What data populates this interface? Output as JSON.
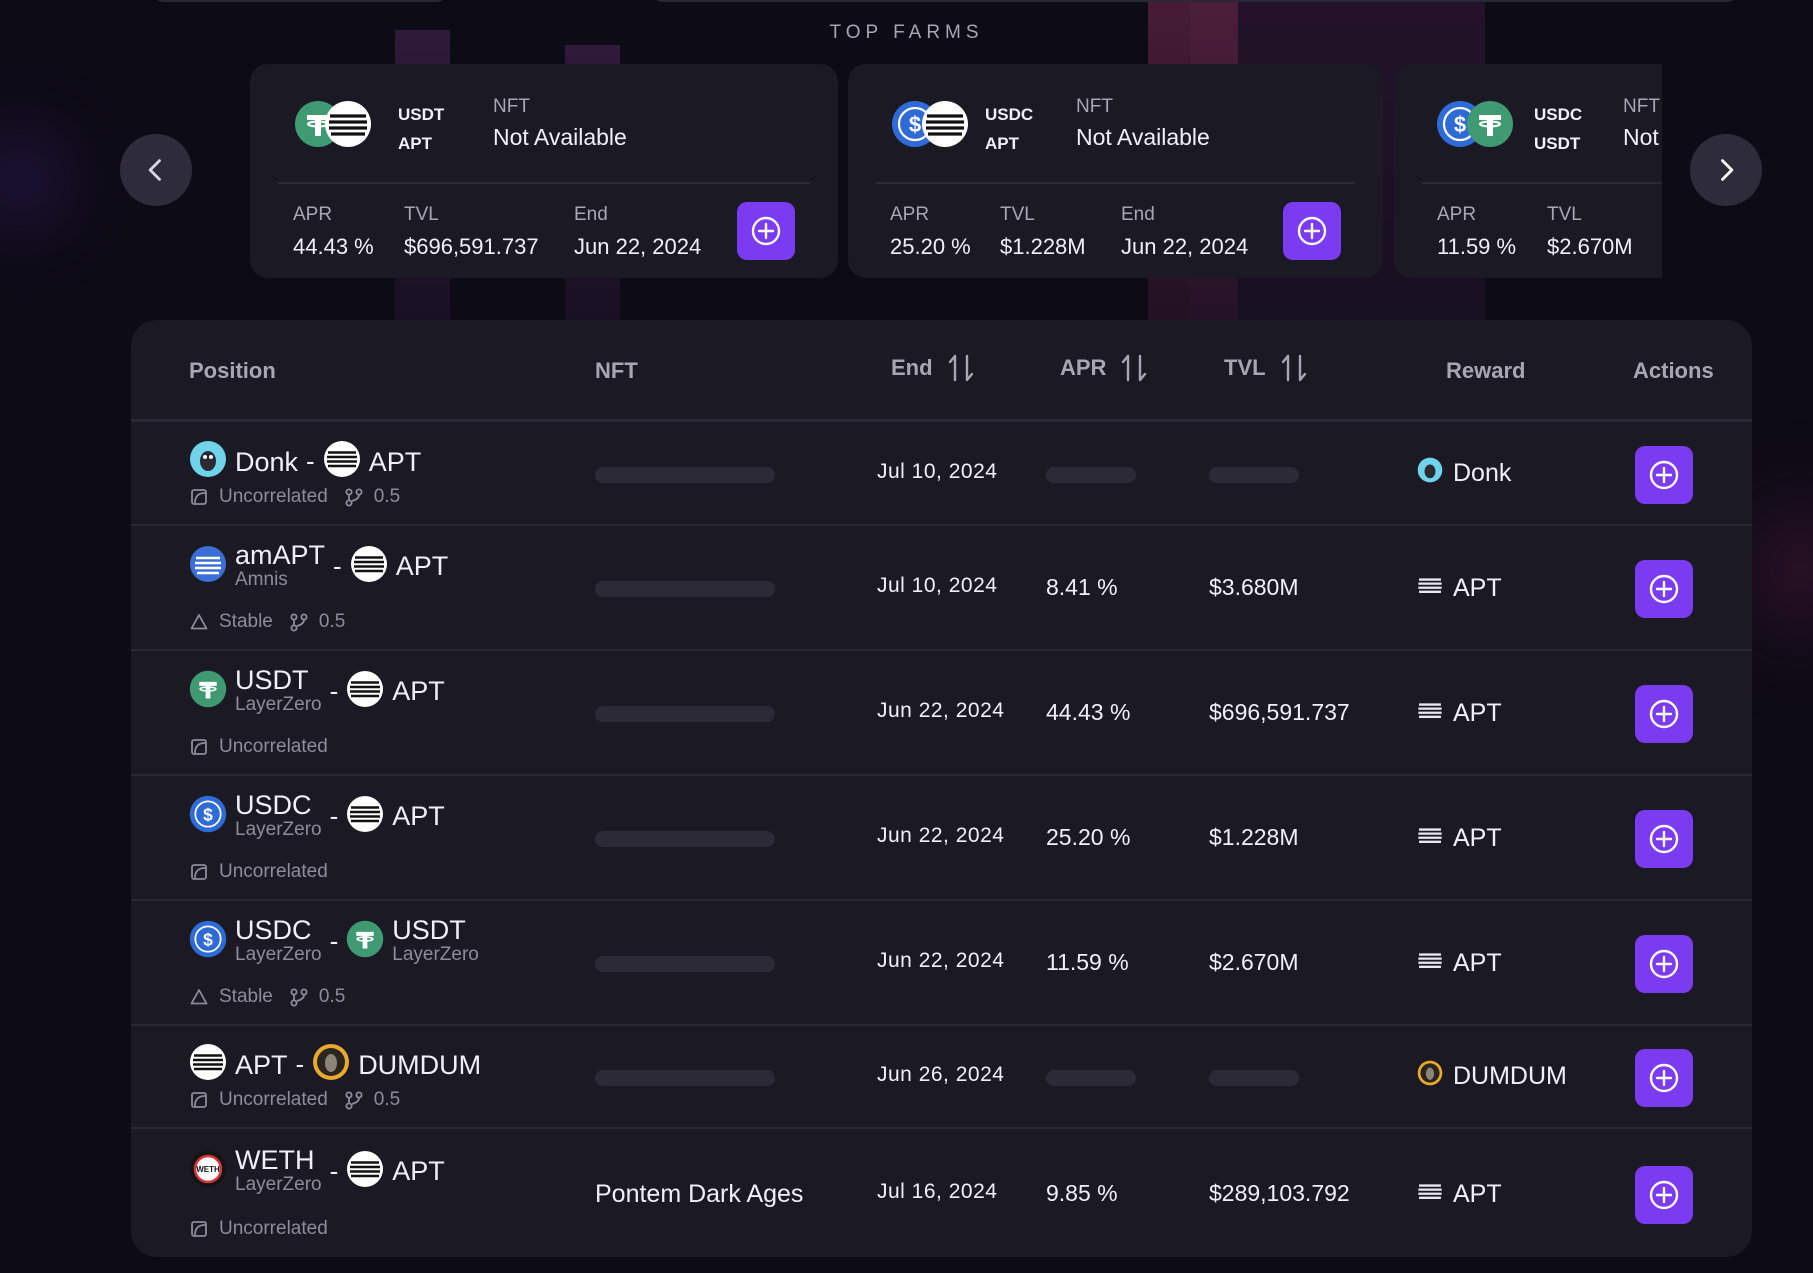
{
  "top_farms": {
    "title": "TOP FARMS",
    "cards": [
      {
        "token_a": "USDT",
        "token_b": "APT",
        "icon_a": "tether-icon",
        "icon_b": "aptos-icon",
        "nft_label": "NFT",
        "nft_value": "Not Available",
        "apr_label": "APR",
        "apr": "44.43 %",
        "tvl_label": "TVL",
        "tvl": "$696,591.737",
        "end_label": "End",
        "end": "Jun 22, 2024"
      },
      {
        "token_a": "USDC",
        "token_b": "APT",
        "icon_a": "usdc-icon",
        "icon_b": "aptos-icon",
        "nft_label": "NFT",
        "nft_value": "Not Available",
        "apr_label": "APR",
        "apr": "25.20 %",
        "tvl_label": "TVL",
        "tvl": "$1.228M",
        "end_label": "End",
        "end": "Jun 22, 2024"
      },
      {
        "token_a": "USDC",
        "token_b": "USDT",
        "icon_a": "usdc-icon",
        "icon_b": "tether-icon",
        "nft_label": "NFT",
        "nft_value": "Not",
        "apr_label": "APR",
        "apr": "11.59 %",
        "tvl_label": "TVL",
        "tvl": "$2.670M"
      }
    ]
  },
  "table": {
    "headers": {
      "position": "Position",
      "nft": "NFT",
      "end": "End",
      "apr": "APR",
      "tvl": "TVL",
      "reward": "Reward",
      "actions": "Actions"
    },
    "rows": [
      {
        "token_a": "Donk",
        "sub_a": "",
        "token_b": "APT",
        "sub_b": "",
        "pool_type": "Uncorrelated",
        "weight": "0.5",
        "nft": "",
        "end": "Jul 10, 2024",
        "apr": "",
        "tvl": "",
        "reward": "Donk"
      },
      {
        "token_a": "amAPT",
        "sub_a": "Amnis",
        "token_b": "APT",
        "sub_b": "",
        "pool_type": "Stable",
        "weight": "0.5",
        "nft": "",
        "end": "Jul 10, 2024",
        "apr": "8.41 %",
        "tvl": "$3.680M",
        "reward": "APT"
      },
      {
        "token_a": "USDT",
        "sub_a": "LayerZero",
        "token_b": "APT",
        "sub_b": "",
        "pool_type": "Uncorrelated",
        "weight": "",
        "nft": "",
        "end": "Jun 22, 2024",
        "apr": "44.43 %",
        "tvl": "$696,591.737",
        "reward": "APT"
      },
      {
        "token_a": "USDC",
        "sub_a": "LayerZero",
        "token_b": "APT",
        "sub_b": "",
        "pool_type": "Uncorrelated",
        "weight": "",
        "nft": "",
        "end": "Jun 22, 2024",
        "apr": "25.20 %",
        "tvl": "$1.228M",
        "reward": "APT"
      },
      {
        "token_a": "USDC",
        "sub_a": "LayerZero",
        "token_b": "USDT",
        "sub_b": "LayerZero",
        "pool_type": "Stable",
        "weight": "0.5",
        "nft": "",
        "end": "Jun 22, 2024",
        "apr": "11.59 %",
        "tvl": "$2.670M",
        "reward": "APT"
      },
      {
        "token_a": "APT",
        "sub_a": "",
        "token_b": "DUMDUM",
        "sub_b": "",
        "pool_type": "Uncorrelated",
        "weight": "0.5",
        "nft": "",
        "end": "Jun 26, 2024",
        "apr": "",
        "tvl": "",
        "reward": "DUMDUM"
      },
      {
        "token_a": "WETH",
        "sub_a": "LayerZero",
        "token_b": "APT",
        "sub_b": "",
        "pool_type": "Uncorrelated",
        "weight": "",
        "nft": "Pontem Dark Ages",
        "end": "Jul 16, 2024",
        "apr": "9.85 %",
        "tvl": "$289,103.792",
        "reward": "APT"
      }
    ]
  },
  "colors": {
    "accent": "#7b3bf0",
    "tether": "#3f9a72",
    "usdc": "#2f6bd6",
    "panel": "#1b1a24",
    "background": "#0d0b16"
  }
}
